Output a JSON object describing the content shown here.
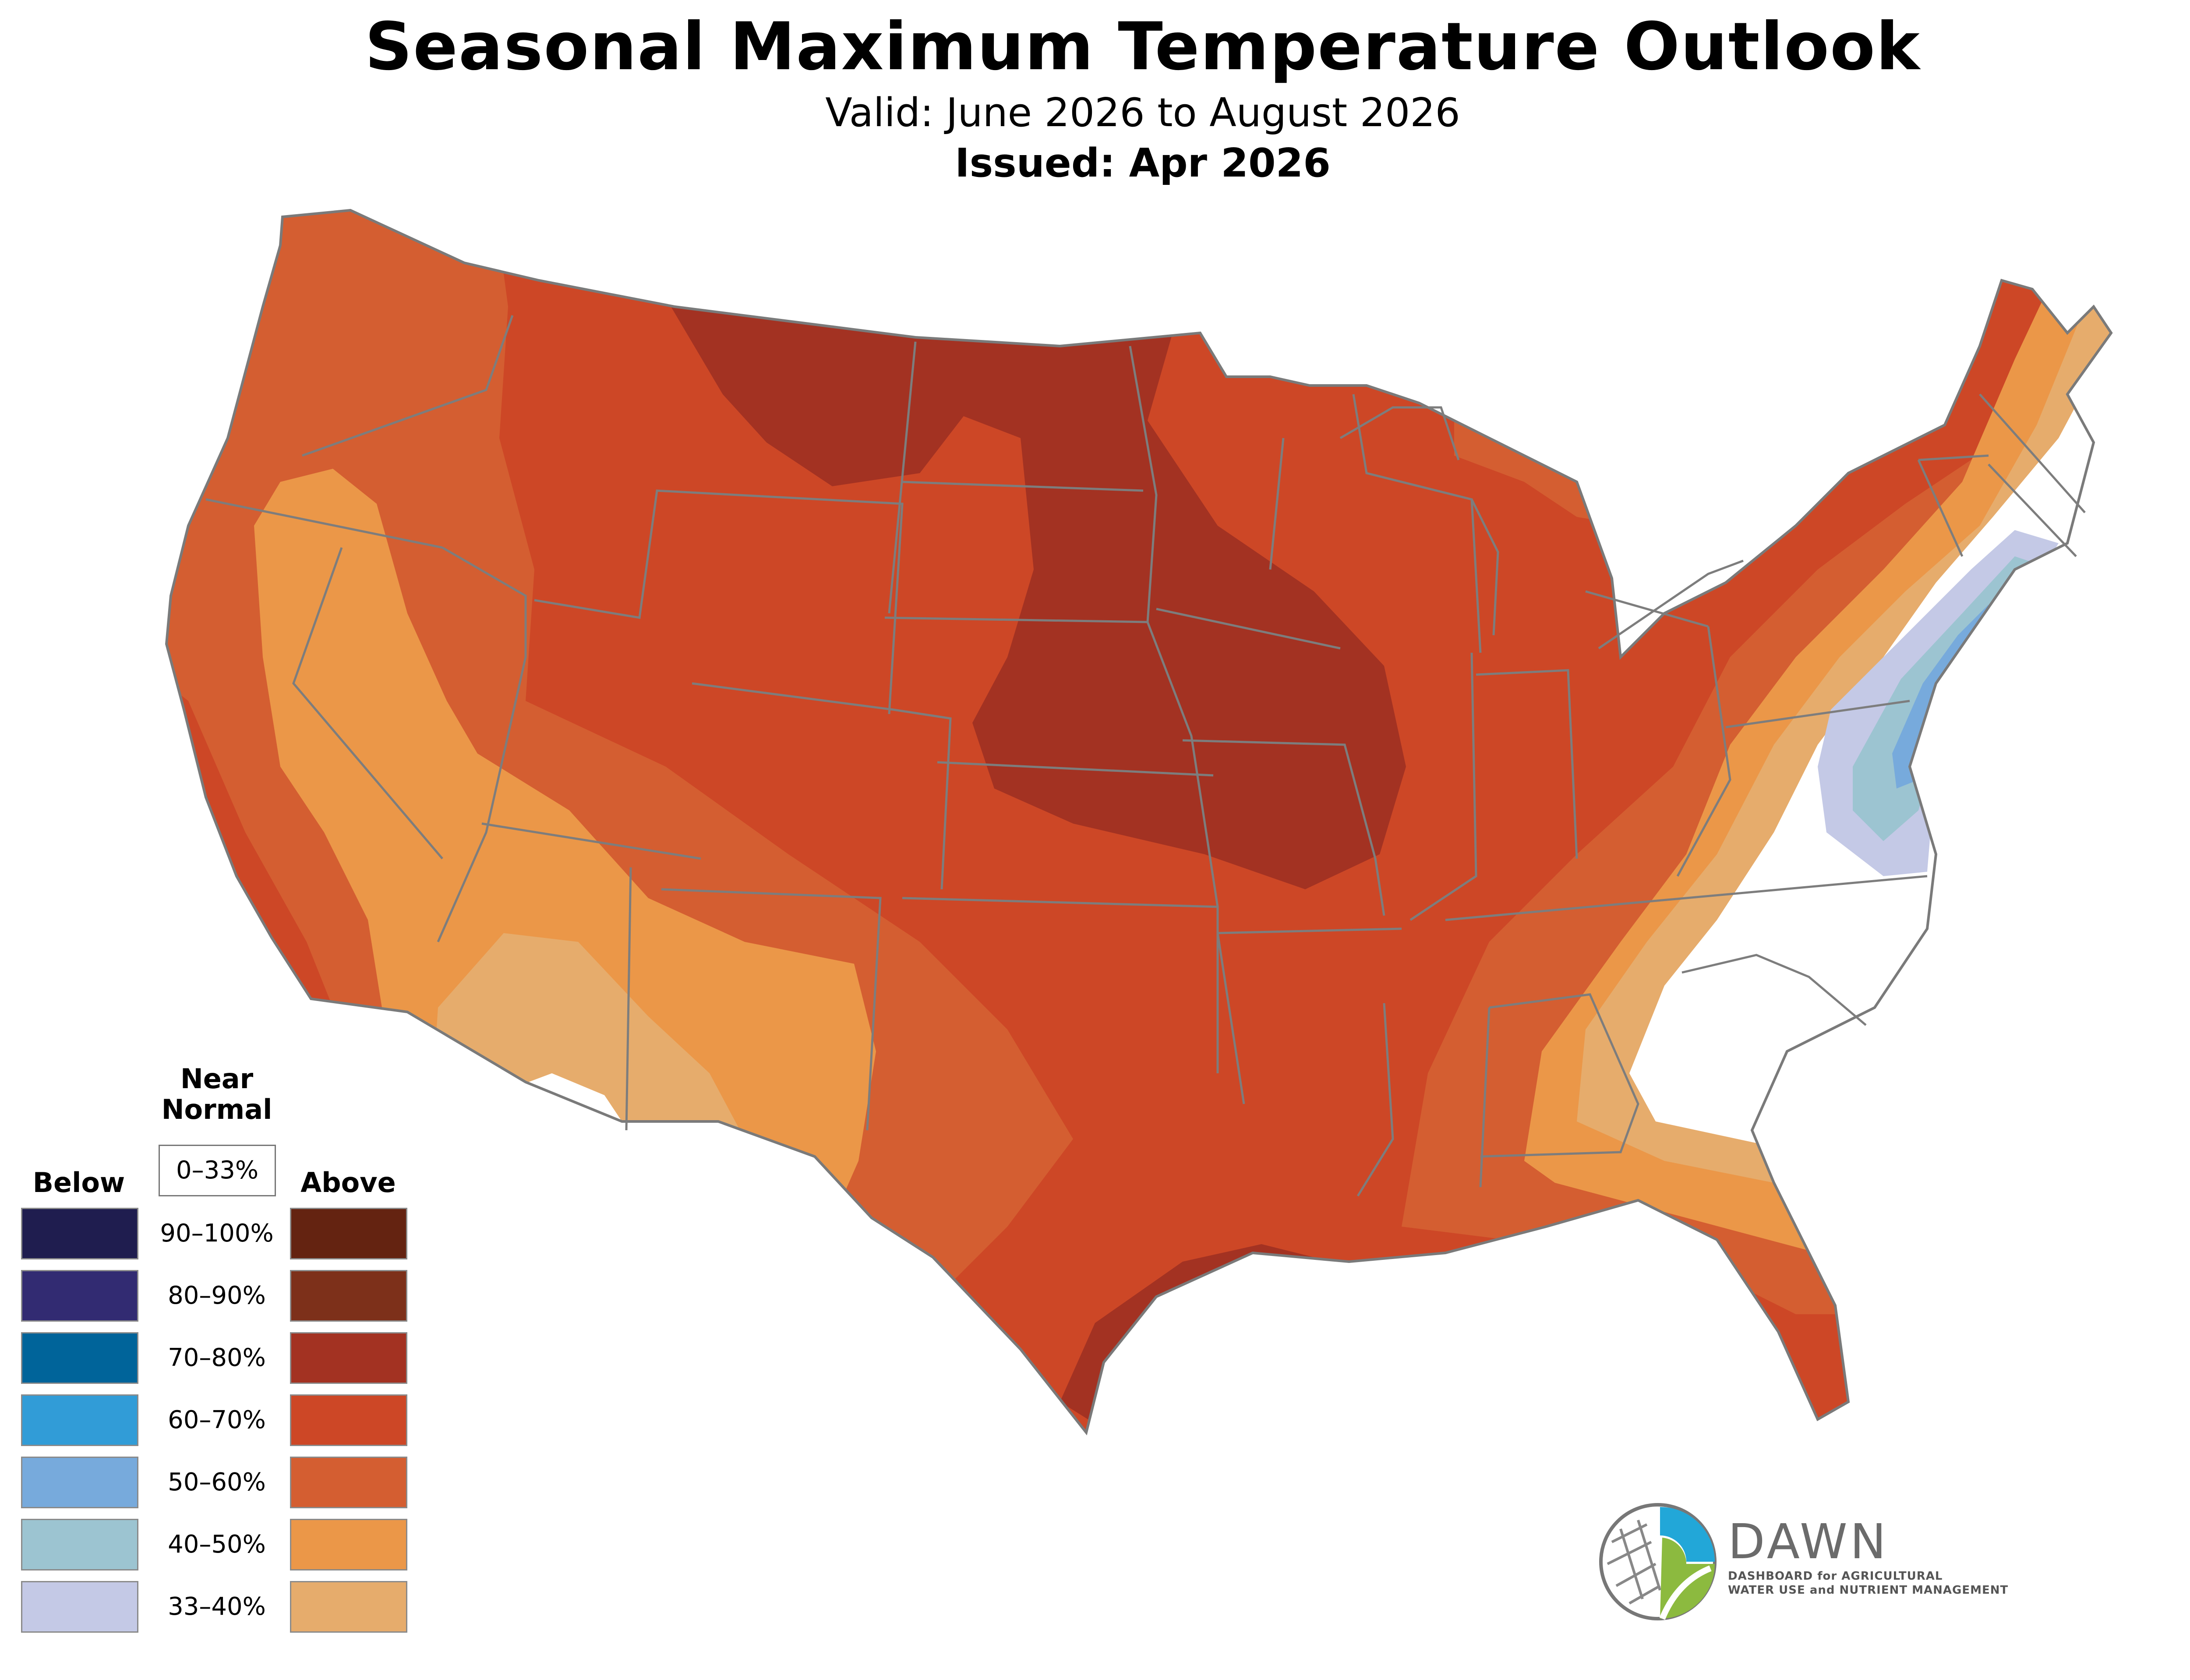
{
  "header": {
    "title": "Seasonal Maximum Temperature Outlook",
    "valid": "Valid: June 2026 to August 2026",
    "issued": "Issued: Apr 2026"
  },
  "legend": {
    "below_label": "Below",
    "above_label": "Above",
    "near_label_line1": "Near",
    "near_label_line2": "Normal",
    "near_range": "0–33%",
    "rows": [
      {
        "range": "90–100%",
        "below_color": "#1f1d4f",
        "above_color": "#642311"
      },
      {
        "range": "80–90%",
        "below_color": "#322b72",
        "above_color": "#7d301a"
      },
      {
        "range": "70–80%",
        "below_color": "#00649a",
        "above_color": "#a33222"
      },
      {
        "range": "60–70%",
        "below_color": "#319cd7",
        "above_color": "#cd4726"
      },
      {
        "range": "50–60%",
        "below_color": "#77aadc",
        "above_color": "#d45e31"
      },
      {
        "range": "40–50%",
        "below_color": "#9cc4d1",
        "above_color": "#eb9748"
      },
      {
        "range": "33–40%",
        "below_color": "#c4c9e6",
        "above_color": "#e6ac6c"
      }
    ]
  },
  "logo": {
    "name": "DAWN",
    "tagline_line1": "DASHBOARD for AGRICULTURAL",
    "tagline_line2": "WATER USE and NUTRIENT MANAGEMENT"
  }
}
